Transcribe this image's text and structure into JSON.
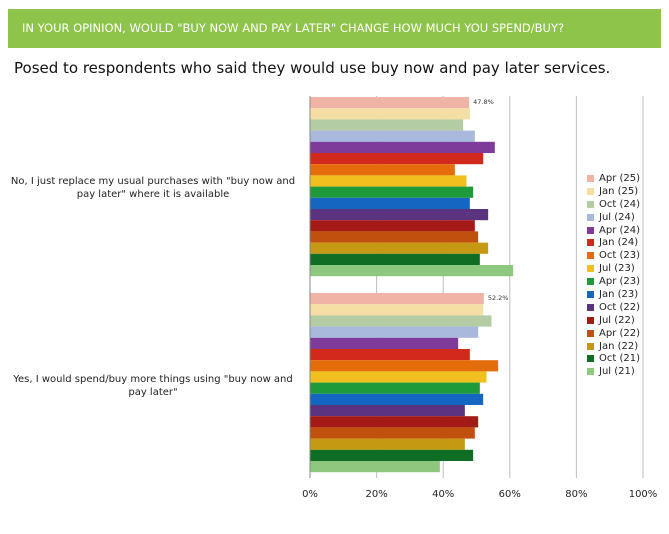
{
  "header": {
    "title": "IN YOUR OPINION, WOULD \"BUY NOW AND PAY LATER\" CHANGE HOW MUCH YOU SPEND/BUY?"
  },
  "subtitle": "Posed to respondents who said they would use buy now and pay later services.",
  "chart_data": {
    "type": "bar",
    "orientation": "horizontal",
    "categories": [
      "No, I just replace my usual purchases with \"buy now and pay later\" where it is available",
      "Yes, I would spend/buy more things using \"buy now and pay later\""
    ],
    "series": [
      {
        "name": "Apr (25)",
        "color": "#f0b4a6",
        "values": [
          47.8,
          52.2
        ]
      },
      {
        "name": "Jan (25)",
        "color": "#f5dea4",
        "values": [
          48.0,
          52.0
        ]
      },
      {
        "name": "Oct (24)",
        "color": "#b3cca3",
        "values": [
          46.0,
          54.5
        ]
      },
      {
        "name": "Jul (24)",
        "color": "#a8b9dd",
        "values": [
          49.5,
          50.5
        ]
      },
      {
        "name": "Apr (24)",
        "color": "#7f3b9a",
        "values": [
          55.5,
          44.5
        ]
      },
      {
        "name": "Jan (24)",
        "color": "#d12a1c",
        "values": [
          52.0,
          48.0
        ]
      },
      {
        "name": "Oct (23)",
        "color": "#e46c0a",
        "values": [
          43.5,
          56.5
        ]
      },
      {
        "name": "Jul (23)",
        "color": "#f2c01e",
        "values": [
          47.0,
          53.0
        ]
      },
      {
        "name": "Apr (23)",
        "color": "#1e9a3a",
        "values": [
          49.0,
          51.0
        ]
      },
      {
        "name": "Jan (23)",
        "color": "#1466c0",
        "values": [
          48.0,
          52.0
        ]
      },
      {
        "name": "Oct (22)",
        "color": "#5b3480",
        "values": [
          53.5,
          46.5
        ]
      },
      {
        "name": "Jul (22)",
        "color": "#a31a16",
        "values": [
          49.5,
          50.5
        ]
      },
      {
        "name": "Apr (22)",
        "color": "#c1500e",
        "values": [
          50.5,
          49.5
        ]
      },
      {
        "name": "Jan (22)",
        "color": "#c59a12",
        "values": [
          53.5,
          46.5
        ]
      },
      {
        "name": "Oct (21)",
        "color": "#0f6e24",
        "values": [
          51.0,
          49.0
        ]
      },
      {
        "name": "Jul (21)",
        "color": "#8ec77e",
        "values": [
          61.0,
          39.0
        ]
      }
    ],
    "data_labels": [
      {
        "category_index": 0,
        "series_index": 0,
        "text": "47.8%"
      },
      {
        "category_index": 1,
        "series_index": 0,
        "text": "52.2%"
      }
    ],
    "xlim": [
      0,
      100
    ],
    "xticks": [
      "0%",
      "20%",
      "40%",
      "60%",
      "80%",
      "100%"
    ],
    "grid": true,
    "legend_position": "right"
  }
}
